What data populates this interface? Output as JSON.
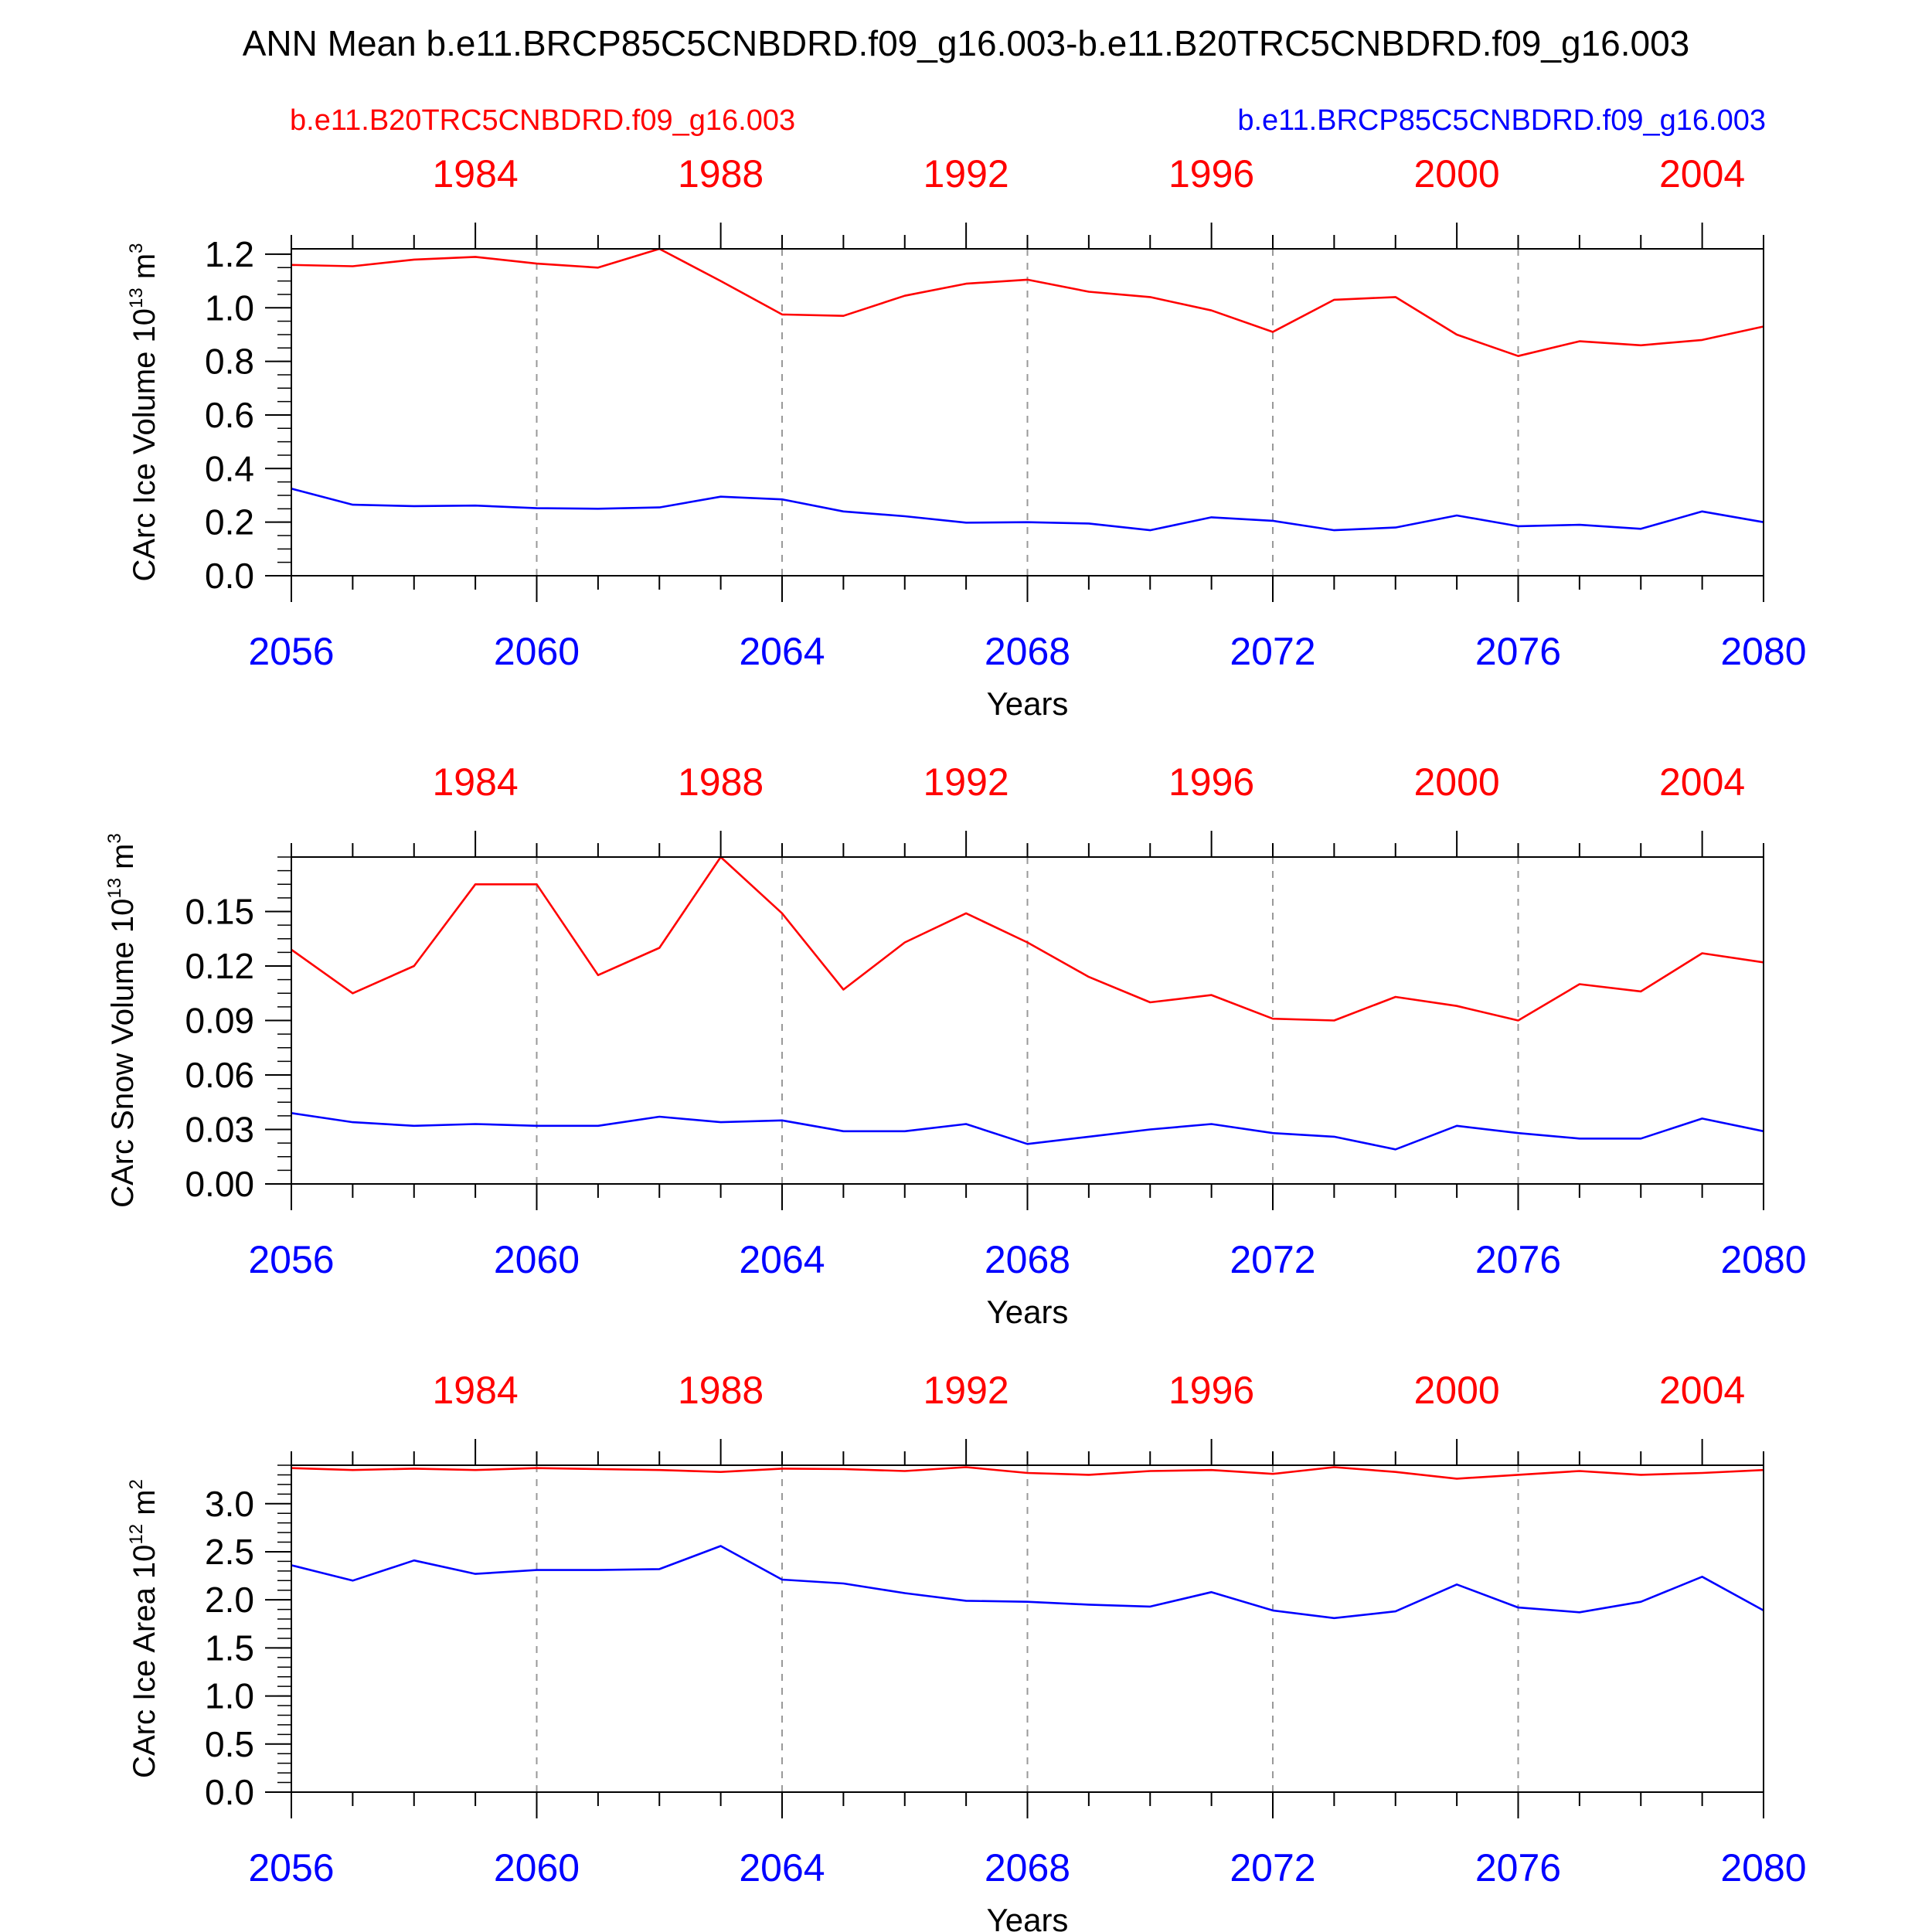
{
  "title": "ANN Mean b.e11.BRCP85C5CNBDRD.f09_g16.003-b.e11.B20TRC5CNBDRD.f09_g16.003",
  "legend": {
    "red": "b.e11.B20TRC5CNBDRD.f09_g16.003",
    "blue": "b.e11.BRCP85C5CNBDRD.f09_g16.003"
  },
  "colors": {
    "red": "#ff0000",
    "blue": "#0000ff",
    "axis": "#000000",
    "grid": "#999999"
  },
  "chart_data": [
    {
      "type": "line",
      "ylabel_main": "CArc Ice Volume 10",
      "ylabel_exp": "13",
      "ylabel_unit": " m",
      "ylabel_unit_exp": "3",
      "xlabel": "Years",
      "ylim": [
        0.0,
        1.22
      ],
      "yticks": [
        0.0,
        0.2,
        0.4,
        0.6,
        0.8,
        1.0,
        1.2
      ],
      "ytick_labels": [
        "0.0",
        "0.2",
        "0.4",
        "0.6",
        "0.8",
        "1.0",
        "1.2"
      ],
      "yminor_step": 0.05,
      "xlim": [
        2056,
        2080
      ],
      "xticks_bottom": [
        2056,
        2060,
        2064,
        2068,
        2072,
        2076,
        2080
      ],
      "xticks_top": [
        1984,
        1988,
        1992,
        1996,
        2000,
        2004
      ],
      "x_offset_top": 75,
      "grid_x": [
        2060,
        2064,
        2068,
        2072,
        2076
      ],
      "x": [
        2056,
        2057,
        2058,
        2059,
        2060,
        2061,
        2062,
        2063,
        2064,
        2065,
        2066,
        2067,
        2068,
        2069,
        2070,
        2071,
        2072,
        2073,
        2074,
        2075,
        2076,
        2077,
        2078,
        2079,
        2080
      ],
      "series": [
        {
          "color": "red",
          "values": [
            1.16,
            1.155,
            1.18,
            1.19,
            1.165,
            1.15,
            1.22,
            1.1,
            0.975,
            0.97,
            1.045,
            1.09,
            1.105,
            1.06,
            1.04,
            0.99,
            0.91,
            1.03,
            1.04,
            0.9,
            0.82,
            0.875,
            0.86,
            0.88,
            0.93
          ]
        },
        {
          "color": "blue",
          "values": [
            0.325,
            0.265,
            0.26,
            0.262,
            0.252,
            0.25,
            0.255,
            0.295,
            0.285,
            0.24,
            0.222,
            0.198,
            0.2,
            0.195,
            0.17,
            0.218,
            0.205,
            0.17,
            0.18,
            0.225,
            0.185,
            0.19,
            0.175,
            0.24,
            0.2
          ]
        }
      ]
    },
    {
      "type": "line",
      "ylabel_main": "CArc Snow Volume 10",
      "ylabel_exp": "13",
      "ylabel_unit": " m",
      "ylabel_unit_exp": "3",
      "xlabel": "Years",
      "ylim": [
        0.0,
        0.18
      ],
      "yticks": [
        0.0,
        0.03,
        0.06,
        0.09,
        0.12,
        0.15
      ],
      "ytick_labels": [
        "0.00",
        "0.03",
        "0.06",
        "0.09",
        "0.12",
        "0.15"
      ],
      "yminor_step": 0.0075,
      "xlim": [
        2056,
        2080
      ],
      "xticks_bottom": [
        2056,
        2060,
        2064,
        2068,
        2072,
        2076,
        2080
      ],
      "xticks_top": [
        1984,
        1988,
        1992,
        1996,
        2000,
        2004
      ],
      "x_offset_top": 75,
      "grid_x": [
        2060,
        2064,
        2068,
        2072,
        2076
      ],
      "x": [
        2056,
        2057,
        2058,
        2059,
        2060,
        2061,
        2062,
        2063,
        2064,
        2065,
        2066,
        2067,
        2068,
        2069,
        2070,
        2071,
        2072,
        2073,
        2074,
        2075,
        2076,
        2077,
        2078,
        2079,
        2080
      ],
      "series": [
        {
          "color": "red",
          "values": [
            0.129,
            0.105,
            0.12,
            0.165,
            0.165,
            0.115,
            0.13,
            0.18,
            0.149,
            0.107,
            0.133,
            0.149,
            0.133,
            0.114,
            0.1,
            0.104,
            0.091,
            0.09,
            0.103,
            0.098,
            0.09,
            0.11,
            0.106,
            0.127,
            0.122
          ]
        },
        {
          "color": "blue",
          "values": [
            0.039,
            0.034,
            0.032,
            0.033,
            0.032,
            0.032,
            0.037,
            0.034,
            0.035,
            0.029,
            0.029,
            0.033,
            0.022,
            0.026,
            0.03,
            0.033,
            0.028,
            0.026,
            0.019,
            0.032,
            0.028,
            0.025,
            0.025,
            0.036,
            0.029
          ]
        }
      ]
    },
    {
      "type": "line",
      "ylabel_main": "CArc Ice Area 10",
      "ylabel_exp": "12",
      "ylabel_unit": " m",
      "ylabel_unit_exp": "2",
      "xlabel": "Years",
      "ylim": [
        0.0,
        3.4
      ],
      "yticks": [
        0.0,
        0.5,
        1.0,
        1.5,
        2.0,
        2.5,
        3.0
      ],
      "ytick_labels": [
        "0.0",
        "0.5",
        "1.0",
        "1.5",
        "2.0",
        "2.5",
        "3.0"
      ],
      "yminor_step": 0.1,
      "xlim": [
        2056,
        2080
      ],
      "xticks_bottom": [
        2056,
        2060,
        2064,
        2068,
        2072,
        2076,
        2080
      ],
      "xticks_top": [
        1984,
        1988,
        1992,
        1996,
        2000,
        2004
      ],
      "x_offset_top": 75,
      "grid_x": [
        2060,
        2064,
        2068,
        2072,
        2076
      ],
      "x": [
        2056,
        2057,
        2058,
        2059,
        2060,
        2061,
        2062,
        2063,
        2064,
        2065,
        2066,
        2067,
        2068,
        2069,
        2070,
        2071,
        2072,
        2073,
        2074,
        2075,
        2076,
        2077,
        2078,
        2079,
        2080
      ],
      "series": [
        {
          "color": "red",
          "values": [
            3.37,
            3.35,
            3.365,
            3.35,
            3.37,
            3.36,
            3.35,
            3.33,
            3.365,
            3.36,
            3.34,
            3.38,
            3.32,
            3.3,
            3.34,
            3.35,
            3.31,
            3.38,
            3.33,
            3.26,
            3.3,
            3.34,
            3.3,
            3.32,
            3.35
          ]
        },
        {
          "color": "blue",
          "values": [
            2.36,
            2.2,
            2.41,
            2.27,
            2.31,
            2.31,
            2.32,
            2.56,
            2.21,
            2.17,
            2.07,
            1.99,
            1.98,
            1.95,
            1.93,
            2.08,
            1.89,
            1.81,
            1.88,
            2.16,
            1.92,
            1.87,
            1.98,
            2.24,
            1.89
          ]
        }
      ]
    }
  ]
}
